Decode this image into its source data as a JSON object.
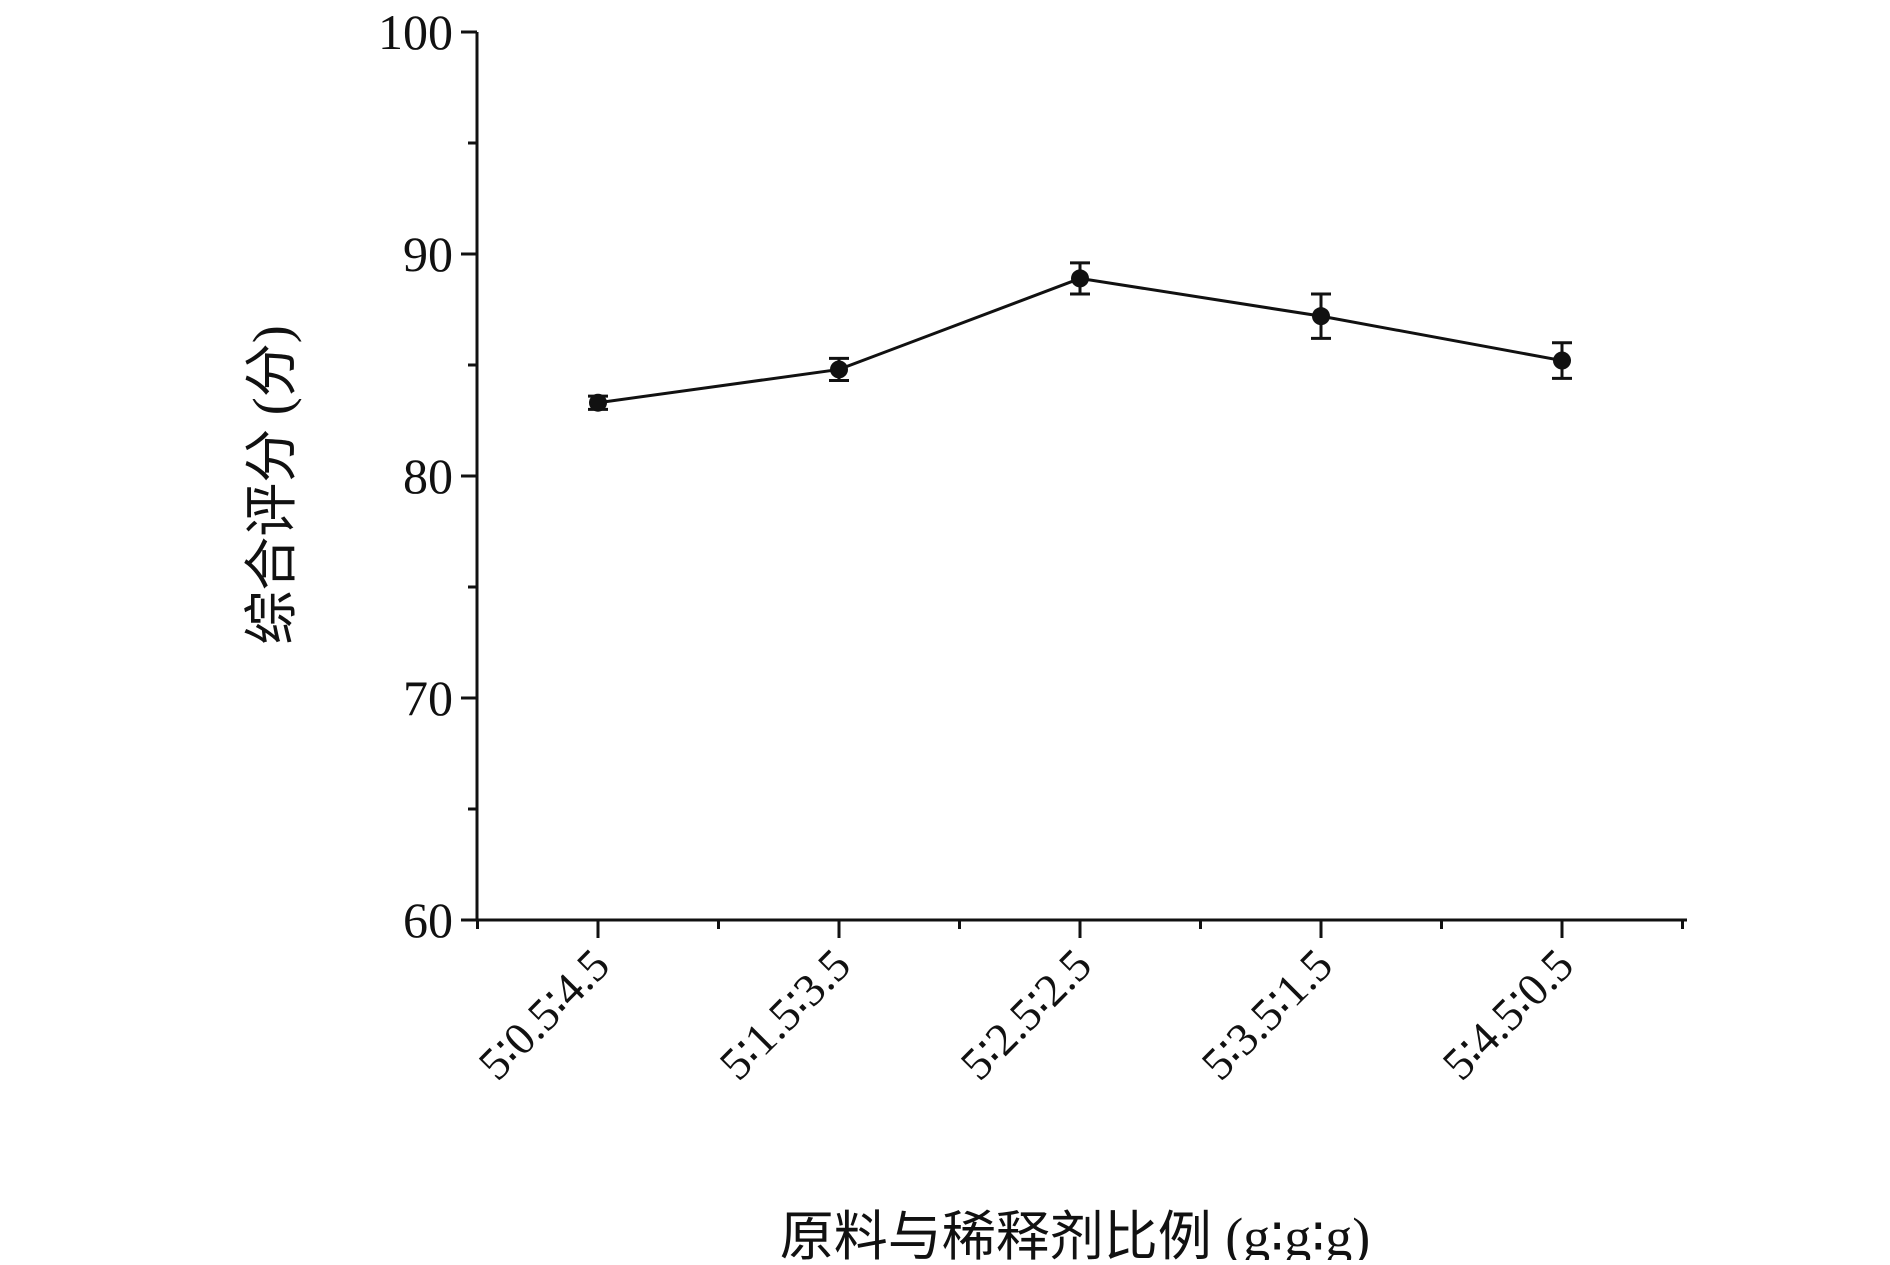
{
  "chart_data": {
    "type": "line",
    "title": "",
    "xlabel": "原料与稀释剂比例 (g∶g∶g)",
    "ylabel": "综合评分 (分)",
    "categories": [
      "5∶0.5∶4.5",
      "5∶1.5∶3.5",
      "5∶2.5∶2.5",
      "5∶3.5∶1.5",
      "5∶4.5∶0.5"
    ],
    "series": [
      {
        "values": [
          83.3,
          84.8,
          88.9,
          87.2,
          85.2
        ],
        "errors": [
          0.3,
          0.5,
          0.7,
          1.0,
          0.8
        ]
      }
    ],
    "ylim": [
      60,
      100
    ],
    "yticks": [
      60,
      70,
      80,
      90,
      100
    ],
    "grid": false,
    "legend": "none",
    "colors": {
      "line": "#111111",
      "marker": "#111111",
      "axis": "#111111"
    }
  }
}
